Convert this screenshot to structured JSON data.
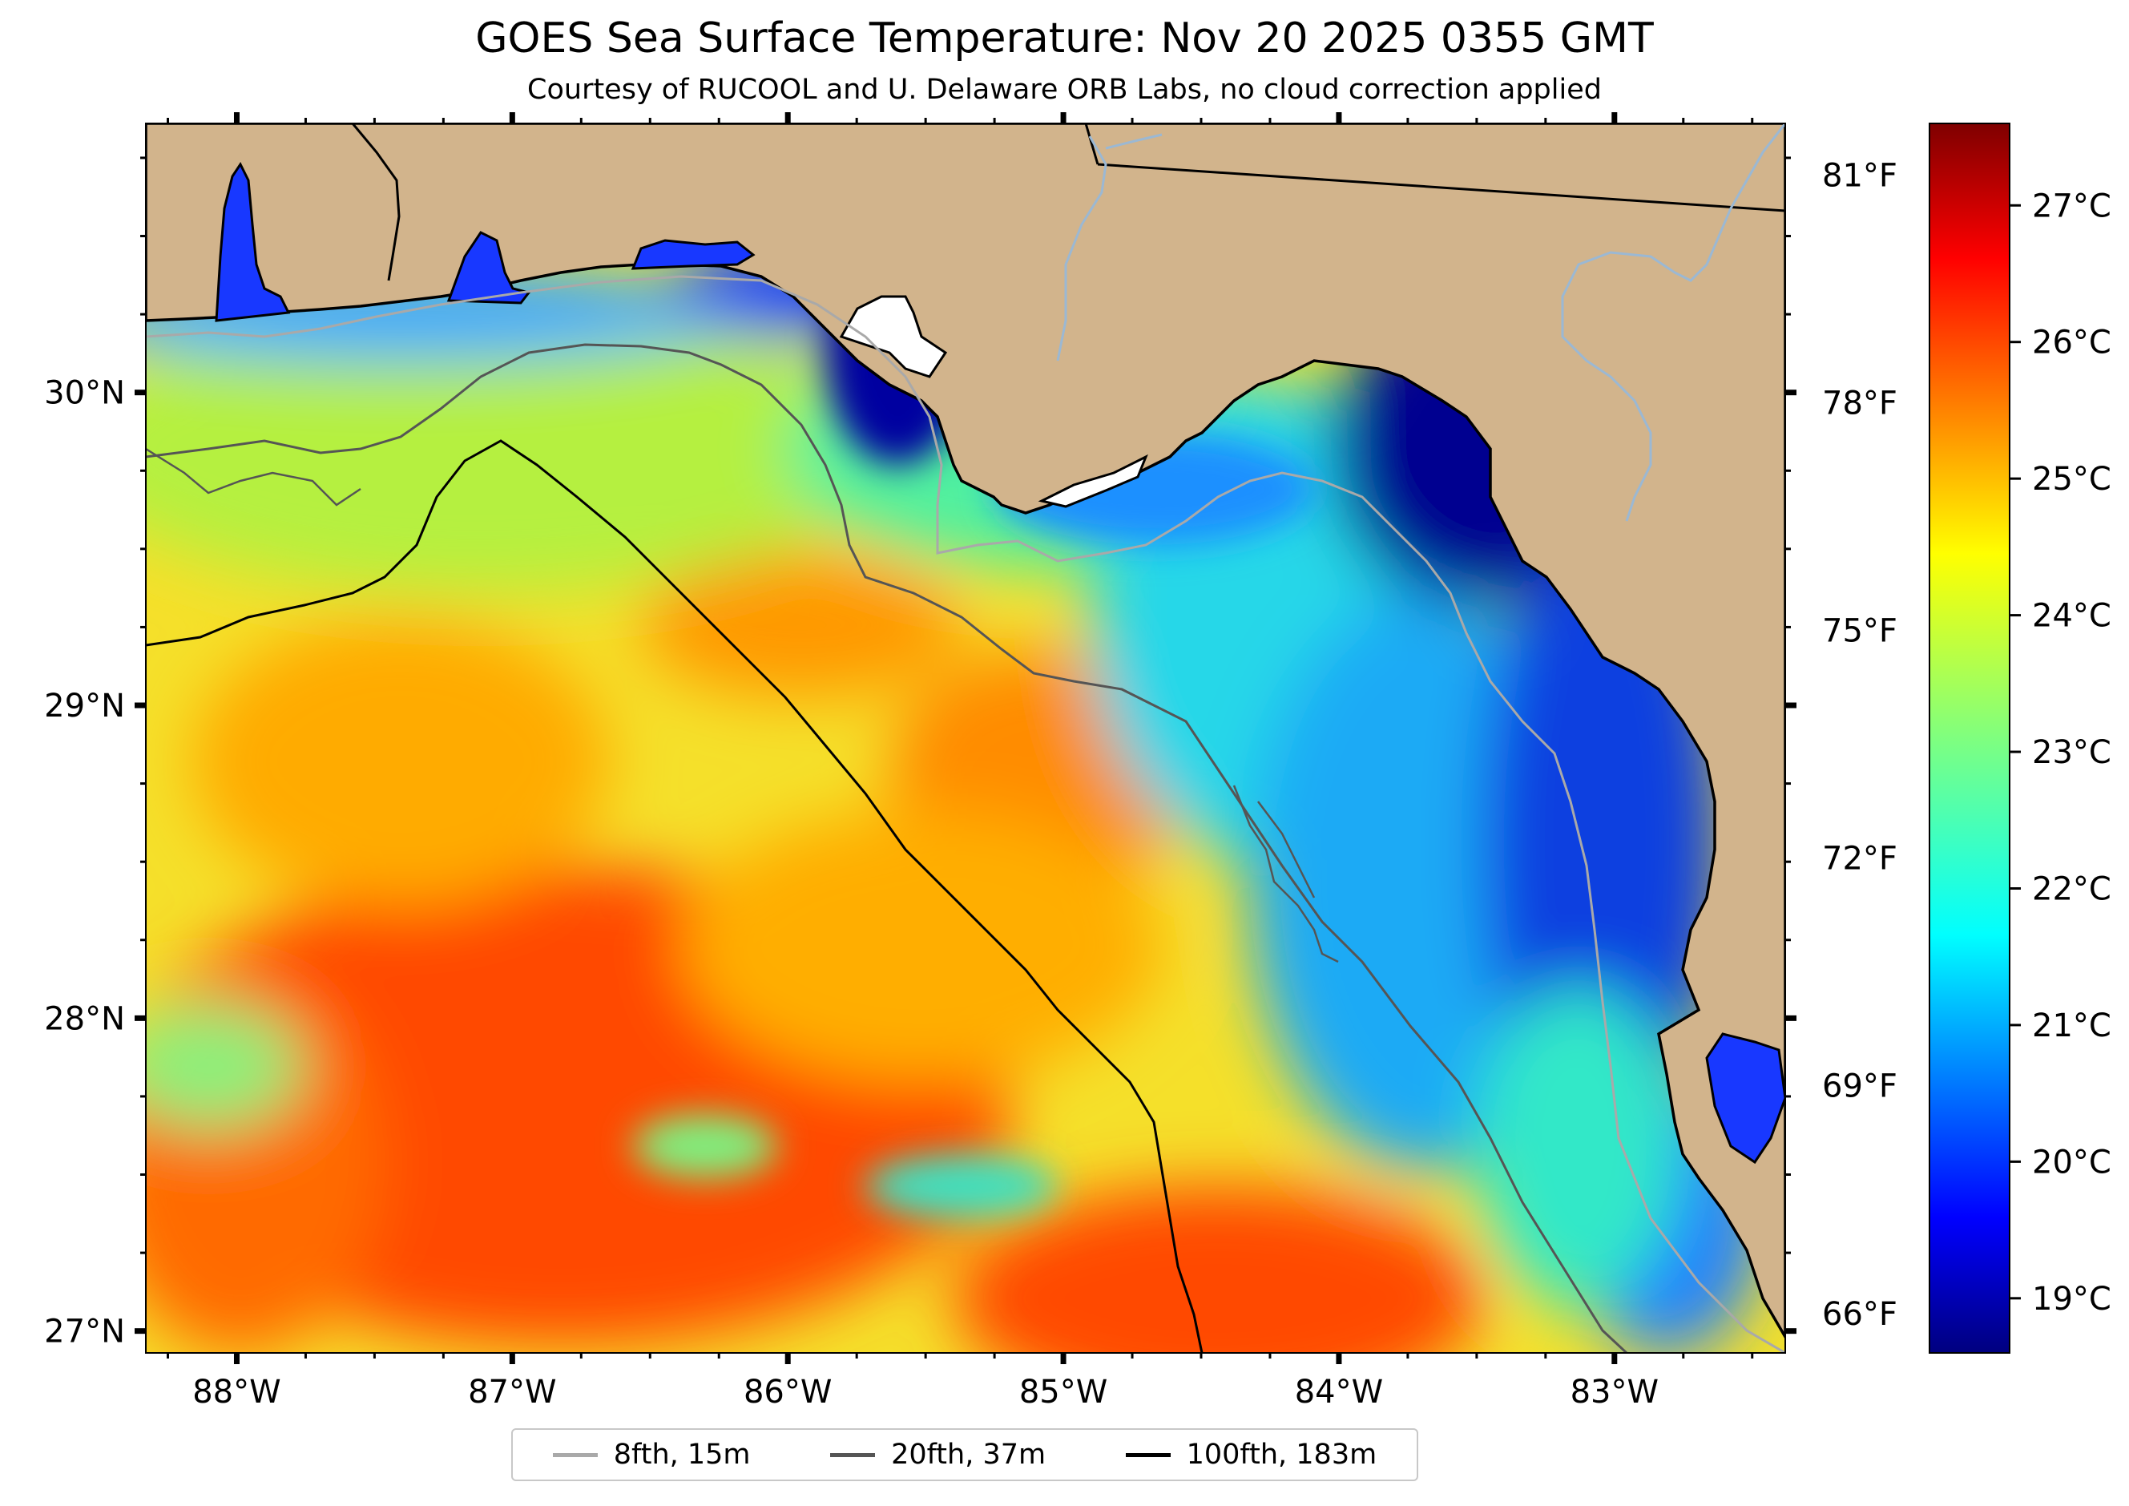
{
  "title": "GOES Sea Surface Temperature: Nov 20 2025 0355 GMT",
  "subtitle": "Courtesy of RUCOOL and U. Delaware ORB Labs, no cloud correction applied",
  "map": {
    "extent": {
      "lon": [
        -88.33,
        -82.38
      ],
      "lat": [
        26.93,
        30.86
      ]
    },
    "lon_ticks": [
      "88°W",
      "87°W",
      "86°W",
      "85°W",
      "84°W",
      "83°W"
    ],
    "lat_ticks": [
      "30°N",
      "29°N",
      "28°N",
      "27°N"
    ],
    "f_ticks": [
      "81°F",
      "78°F",
      "75°F",
      "72°F",
      "69°F",
      "66°F"
    ],
    "colors": {
      "land": "#d2b48c",
      "coast": "#000000",
      "rivers": "#9bb8d3",
      "missing": "#ffffff"
    }
  },
  "colorbar": {
    "colormap": "jet",
    "range_c": [
      18.6,
      27.6
    ],
    "ticks": [
      "27°C",
      "26°C",
      "25°C",
      "24°C",
      "23°C",
      "22°C",
      "21°C",
      "20°C",
      "19°C"
    ]
  },
  "legend": [
    {
      "label": "8fth, 15m",
      "color": "#a9a9a9"
    },
    {
      "label": "20fth, 37m",
      "color": "#555555"
    },
    {
      "label": "100fth, 183m",
      "color": "#000000"
    }
  ]
}
